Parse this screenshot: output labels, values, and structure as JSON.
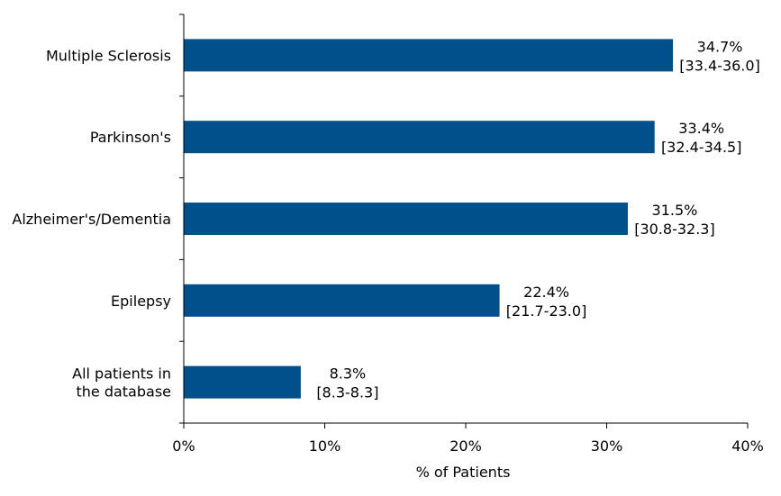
{
  "chart_data": {
    "type": "bar",
    "orientation": "horizontal",
    "categories": [
      "Multiple Sclerosis",
      "Parkinson's",
      "Alzheimer's/Dementia",
      "Epilepsy",
      "All patients in the database"
    ],
    "values": [
      34.7,
      33.4,
      31.5,
      22.4,
      8.3
    ],
    "data_labels": [
      {
        "value": "34.7%",
        "ci": "[33.4-36.0]"
      },
      {
        "value": "33.4%",
        "ci": "[32.4-34.5]"
      },
      {
        "value": "31.5%",
        "ci": "[30.8-32.3]"
      },
      {
        "value": "22.4%",
        "ci": "[21.7-23.0]"
      },
      {
        "value": "8.3%",
        "ci": "[8.3-8.3]"
      }
    ],
    "x_ticks": [
      "0%",
      "10%",
      "20%",
      "30%",
      "40%"
    ],
    "xlabel": "% of Patients",
    "ylabel": "",
    "xlim": [
      0,
      40
    ],
    "grid": false,
    "bar_color": "#02508A"
  }
}
